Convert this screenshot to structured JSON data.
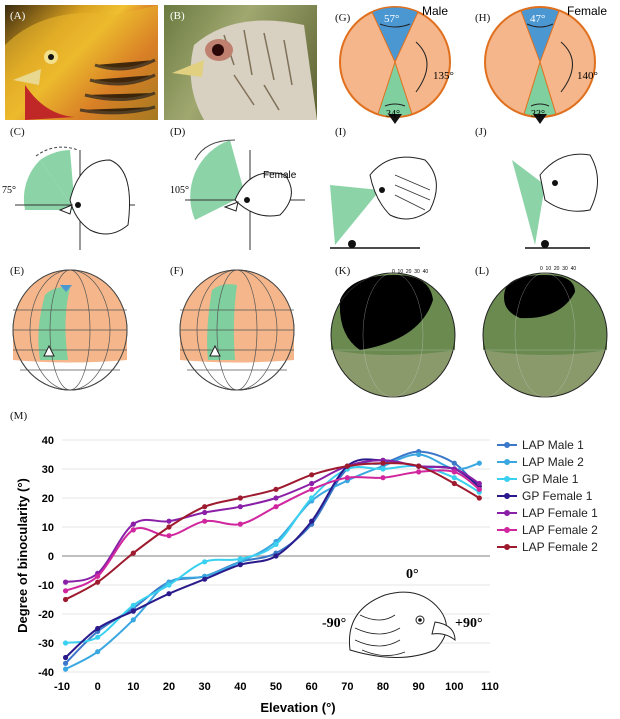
{
  "panels": {
    "A": "(A)",
    "B": "(B)",
    "C": "(C)",
    "D": "(D)",
    "E": "(E)",
    "F": "(F)",
    "G": "(G)",
    "H": "(H)",
    "I": "(I)",
    "J": "(J)",
    "K": "(K)",
    "L": "(L)",
    "M": "(M)"
  },
  "visual_field": {
    "male": {
      "label": "Male",
      "top": "57°",
      "side": "135°",
      "bottom": "34°"
    },
    "female": {
      "label": "Female",
      "top": "47°",
      "side": "140°",
      "bottom": "33°"
    }
  },
  "head_diagrams": {
    "c_angle": "75°",
    "d_angle": "105°",
    "d_label": "Female"
  },
  "scale": {
    "k": "0  10  20  30  40",
    "l": "0  10  20  30  40"
  },
  "colors": {
    "orange_field": "#f4b68a",
    "blue_field": "#4a97d2",
    "green_field": "#7fcf9f",
    "outline_orange": "#e0701e"
  },
  "chart_data": {
    "type": "line",
    "xlabel": "Elevation (°)",
    "ylabel": "Degree of binocularity (°)",
    "xlim": [
      -10,
      110
    ],
    "ylim": [
      -40,
      40
    ],
    "xticks": [
      -10,
      0,
      10,
      20,
      30,
      40,
      50,
      60,
      70,
      80,
      90,
      100,
      110
    ],
    "yticks": [
      -40,
      -30,
      -20,
      -10,
      0,
      10,
      20,
      30,
      40
    ],
    "grid": "horizontal",
    "legend_position": "right",
    "inset_labels": {
      "top": "0°",
      "left": "-90°",
      "right": "+90°"
    },
    "series": [
      {
        "name": "LAP Male 1",
        "color": "#3b78c9",
        "x": [
          -9,
          0,
          10,
          20,
          30,
          40,
          50,
          60,
          70,
          80,
          90,
          100,
          107
        ],
        "y": [
          -37,
          -26,
          -18,
          -9,
          -7,
          -2,
          1,
          11,
          30,
          32,
          36,
          32,
          23
        ]
      },
      {
        "name": "LAP Male 2",
        "color": "#3aa7e0",
        "x": [
          -9,
          0,
          10,
          20,
          30,
          40,
          50,
          60,
          70,
          80,
          90,
          100,
          107
        ],
        "y": [
          -39,
          -33,
          -22,
          -9,
          -7,
          -2,
          5,
          19,
          26,
          31,
          35,
          30,
          32
        ]
      },
      {
        "name": "GP Male 1",
        "color": "#3ad0f0",
        "x": [
          -9,
          0,
          10,
          20,
          30,
          40,
          50,
          60,
          70,
          80,
          90,
          100,
          107
        ],
        "y": [
          -30,
          -28,
          -17,
          -10,
          -2,
          -1,
          4,
          20,
          30,
          30,
          31,
          27,
          22
        ]
      },
      {
        "name": "GP Female 1",
        "color": "#2a1a8c",
        "x": [
          -9,
          0,
          10,
          20,
          30,
          40,
          50,
          60,
          70,
          80,
          90,
          100,
          107
        ],
        "y": [
          -35,
          -25,
          -19,
          -13,
          -8,
          -3,
          0,
          12,
          31,
          33,
          31,
          30,
          24
        ]
      },
      {
        "name": "LAP Female 1",
        "color": "#8a1fa8",
        "x": [
          -9,
          0,
          10,
          20,
          30,
          40,
          50,
          60,
          70,
          80,
          90,
          100,
          107
        ],
        "y": [
          -9,
          -6,
          11,
          12,
          15,
          17,
          20,
          25,
          31,
          33,
          31,
          30,
          25
        ]
      },
      {
        "name": "LAP Female 2",
        "color": "#d0269e",
        "x": [
          -9,
          0,
          10,
          20,
          30,
          40,
          50,
          60,
          70,
          80,
          90,
          100,
          107
        ],
        "y": [
          -12,
          -7,
          9,
          7,
          12,
          11,
          17,
          23,
          27,
          27,
          29,
          29,
          23
        ]
      },
      {
        "name": "LAP Female 2",
        "color": "#9e1a2e",
        "x": [
          -9,
          0,
          10,
          20,
          30,
          40,
          50,
          60,
          70,
          80,
          90,
          100,
          107
        ],
        "y": [
          -15,
          -9,
          1,
          10,
          17,
          20,
          23,
          28,
          31,
          32,
          31,
          25,
          20
        ]
      }
    ]
  }
}
